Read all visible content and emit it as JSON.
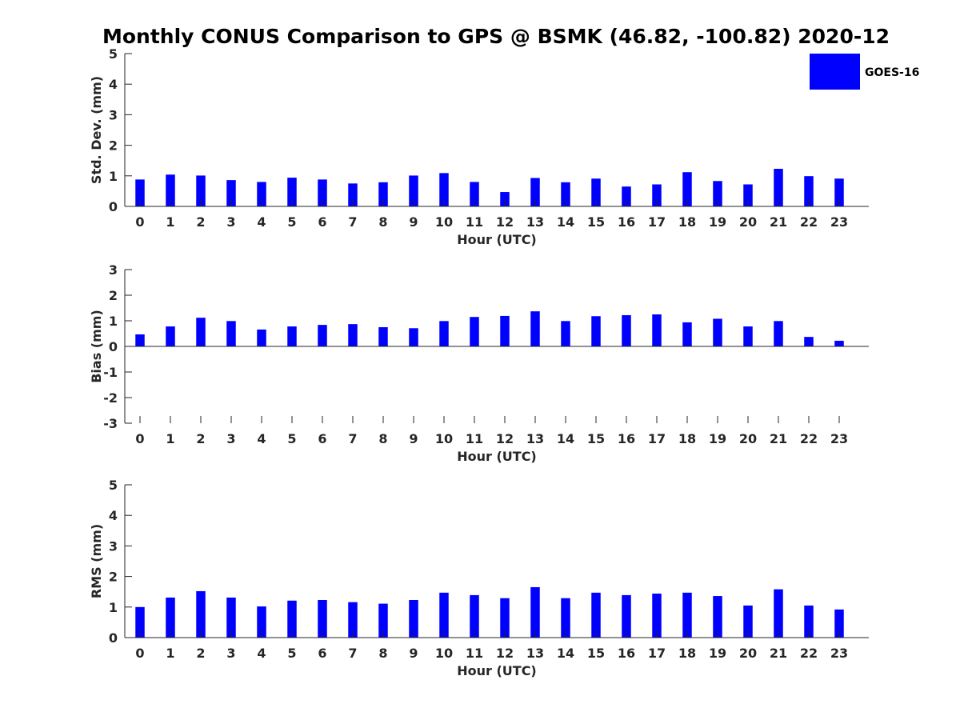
{
  "title": "Monthly CONUS Comparison to GPS @ BSMK (46.82, -100.82) 2020-12",
  "bar_color": "#0000ff",
  "axis_color": "#262626",
  "chart_data": [
    {
      "type": "bar",
      "categories": [
        "0",
        "1",
        "2",
        "3",
        "4",
        "5",
        "6",
        "7",
        "8",
        "9",
        "10",
        "11",
        "12",
        "13",
        "14",
        "15",
        "16",
        "17",
        "18",
        "19",
        "20",
        "21",
        "22",
        "23"
      ],
      "series": [
        {
          "name": "GOES-16",
          "values": [
            0.88,
            1.04,
            1.01,
            0.86,
            0.8,
            0.94,
            0.88,
            0.75,
            0.79,
            1.01,
            1.09,
            0.8,
            0.47,
            0.93,
            0.79,
            0.91,
            0.65,
            0.72,
            1.12,
            0.83,
            0.72,
            1.23,
            0.99,
            0.91
          ]
        }
      ],
      "xlabel": "Hour (UTC)",
      "ylabel": "Std. Dev. (mm)",
      "ylim": [
        0,
        5
      ],
      "yticks": [
        "0",
        "1",
        "2",
        "3",
        "4",
        "5"
      ],
      "legend": {
        "label": "GOES-16",
        "placement": "top-right"
      }
    },
    {
      "type": "bar",
      "categories": [
        "0",
        "1",
        "2",
        "3",
        "4",
        "5",
        "6",
        "7",
        "8",
        "9",
        "10",
        "11",
        "12",
        "13",
        "14",
        "15",
        "16",
        "17",
        "18",
        "19",
        "20",
        "21",
        "22",
        "23"
      ],
      "series": [
        {
          "name": "GOES-16",
          "values": [
            0.47,
            0.78,
            1.12,
            0.99,
            0.66,
            0.78,
            0.84,
            0.87,
            0.75,
            0.71,
            0.99,
            1.15,
            1.19,
            1.37,
            0.99,
            1.18,
            1.22,
            1.25,
            0.94,
            1.08,
            0.78,
            0.99,
            0.37,
            0.22
          ]
        }
      ],
      "xlabel": "Hour (UTC)",
      "ylabel": "Bias (mm)",
      "ylim": [
        -3,
        3
      ],
      "yticks": [
        "-3",
        "-2",
        "-1",
        "0",
        "1",
        "2",
        "3"
      ]
    },
    {
      "type": "bar",
      "categories": [
        "0",
        "1",
        "2",
        "3",
        "4",
        "5",
        "6",
        "7",
        "8",
        "9",
        "10",
        "11",
        "12",
        "13",
        "14",
        "15",
        "16",
        "17",
        "18",
        "19",
        "20",
        "21",
        "22",
        "23"
      ],
      "series": [
        {
          "name": "GOES-16",
          "values": [
            1.0,
            1.31,
            1.52,
            1.31,
            1.02,
            1.21,
            1.23,
            1.16,
            1.11,
            1.23,
            1.47,
            1.39,
            1.29,
            1.65,
            1.29,
            1.47,
            1.39,
            1.44,
            1.47,
            1.36,
            1.05,
            1.58,
            1.05,
            0.92
          ]
        }
      ],
      "xlabel": "Hour (UTC)",
      "ylabel": "RMS (mm)",
      "ylim": [
        0,
        5
      ],
      "yticks": [
        "0",
        "1",
        "2",
        "3",
        "4",
        "5"
      ]
    }
  ]
}
